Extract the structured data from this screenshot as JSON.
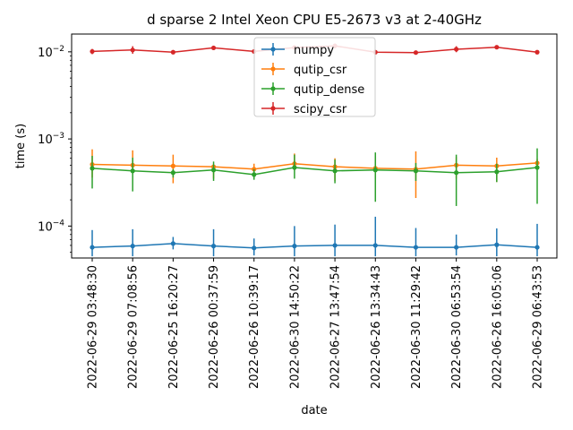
{
  "chart_data": {
    "type": "line",
    "title": "d sparse 2 Intel Xeon CPU E5-2673 v3 at 2-40GHz",
    "xlabel": "date",
    "ylabel": "time (s)",
    "yscale": "log",
    "ylim": [
      4.3e-05,
      0.016
    ],
    "grid": false,
    "legend_position": "top-center",
    "categories": [
      "2022-06-29 03:48:30",
      "2022-06-29 07:08:56",
      "2022-06-25 16:20:27",
      "2022-06-26 00:37:59",
      "2022-06-26 10:39:17",
      "2022-06-30 14:50:22",
      "2022-06-27 13:47:54",
      "2022-06-26 13:34:43",
      "2022-06-30 11:29:42",
      "2022-06-30 06:53:54",
      "2022-06-26 16:05:06",
      "2022-06-29 06:43:53"
    ],
    "y_ticks": [
      {
        "value": 0.0001,
        "base": "10",
        "exp": "−4"
      },
      {
        "value": 0.001,
        "base": "10",
        "exp": "−3"
      },
      {
        "value": 0.01,
        "base": "10",
        "exp": "−2"
      }
    ],
    "series": [
      {
        "name": "numpy",
        "color": "#1f77b4",
        "values": [
          5.7e-05,
          5.9e-05,
          6.3e-05,
          5.9e-05,
          5.6e-05,
          5.9e-05,
          6e-05,
          6e-05,
          5.7e-05,
          5.7e-05,
          6.1e-05,
          5.7e-05
        ],
        "err_low": [
          4.5e-05,
          4.5e-05,
          5.4e-05,
          4.5e-05,
          4.6e-05,
          4.5e-05,
          4.5e-05,
          4.5e-05,
          4.5e-05,
          4.6e-05,
          4.5e-05,
          4.5e-05
        ],
        "err_high": [
          9e-05,
          9.2e-05,
          7.5e-05,
          9.2e-05,
          7.2e-05,
          0.0001,
          0.000104,
          0.000128,
          9.5e-05,
          8e-05,
          9.4e-05,
          0.000106
        ]
      },
      {
        "name": "qutip_csr",
        "color": "#ff7f0e",
        "values": [
          0.00051,
          0.0005,
          0.00049,
          0.00048,
          0.00045,
          0.00052,
          0.00048,
          0.00046,
          0.00045,
          0.0005,
          0.00049,
          0.00053
        ],
        "err_low": [
          0.00036,
          0.00043,
          0.00031,
          0.00035,
          0.0004,
          0.00044,
          0.00033,
          0.00035,
          0.00021,
          0.00035,
          0.00032,
          0.00048
        ],
        "err_high": [
          0.00076,
          0.00074,
          0.00066,
          0.0005,
          0.00052,
          0.00068,
          0.0006,
          0.00063,
          0.00072,
          0.00062,
          0.00061,
          0.00059
        ]
      },
      {
        "name": "qutip_dense",
        "color": "#2ca02c",
        "values": [
          0.00046,
          0.00043,
          0.00041,
          0.00044,
          0.00039,
          0.00047,
          0.00043,
          0.00044,
          0.00043,
          0.00041,
          0.00042,
          0.00047
        ],
        "err_low": [
          0.00027,
          0.00025,
          0.00036,
          0.00033,
          0.00034,
          0.00035,
          0.00031,
          0.00019,
          0.00033,
          0.00017,
          0.00032,
          0.00018
        ],
        "err_high": [
          0.00064,
          0.00061,
          0.00045,
          0.00055,
          0.00045,
          0.00066,
          0.00058,
          0.0007,
          0.00053,
          0.00066,
          0.00052,
          0.00078
        ]
      },
      {
        "name": "scipy_csr",
        "color": "#d62728",
        "values": [
          0.0101,
          0.0105,
          0.0099,
          0.0111,
          0.0101,
          0.0112,
          0.0117,
          0.0099,
          0.0098,
          0.0107,
          0.0113,
          0.0099
        ],
        "err_low": [
          0.0094,
          0.0095,
          0.0096,
          0.0106,
          0.0097,
          0.0106,
          0.011,
          0.0096,
          0.0095,
          0.0099,
          0.0107,
          0.0095
        ],
        "err_high": [
          0.0108,
          0.0116,
          0.0103,
          0.0116,
          0.0106,
          0.0119,
          0.0124,
          0.0103,
          0.0101,
          0.0116,
          0.0118,
          0.0103
        ]
      }
    ]
  }
}
